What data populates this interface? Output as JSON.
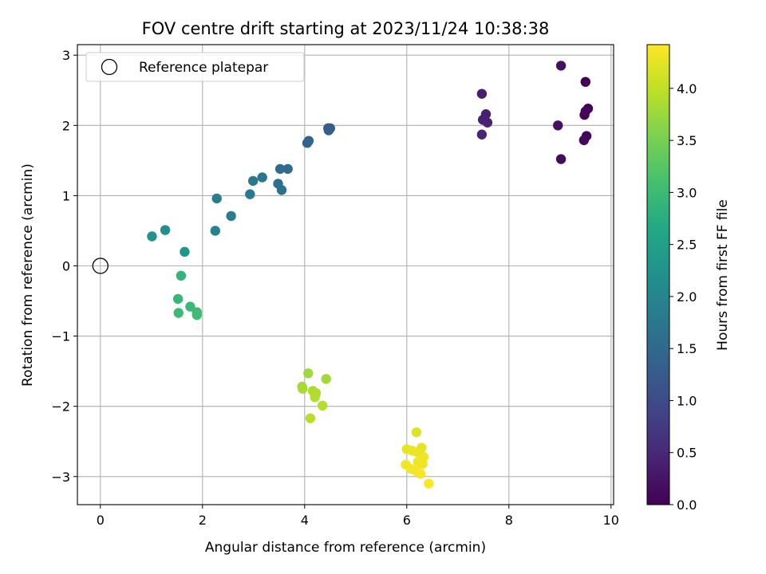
{
  "chart_data": {
    "type": "scatter",
    "title": "FOV centre drift starting at 2023/11/24 10:38:38",
    "xlabel": "Angular distance from reference (arcmin)",
    "ylabel": "Rotation from reference (arcmin)",
    "xlim": [
      -0.45,
      10.05
    ],
    "ylim": [
      -3.4,
      3.15
    ],
    "xticks": [
      0,
      2,
      4,
      6,
      8,
      10
    ],
    "xtick_labels": [
      "0",
      "2",
      "4",
      "6",
      "8",
      "10"
    ],
    "yticks": [
      -3,
      -2,
      -1,
      0,
      1,
      2,
      3
    ],
    "ytick_labels": [
      "−3",
      "−2",
      "−1",
      "0",
      "1",
      "2",
      "3"
    ],
    "grid": true,
    "colormap": "viridis",
    "colorbar": {
      "label": "Hours from first FF file",
      "range": [
        0,
        4.42
      ],
      "ticks": [
        0,
        0.5,
        1,
        1.5,
        2,
        2.5,
        3,
        3.5,
        4
      ],
      "tick_labels": [
        "0.0",
        "0.5",
        "1.0",
        "1.5",
        "2.0",
        "2.5",
        "3.0",
        "3.5",
        "4.0"
      ]
    },
    "reference": {
      "name": "Reference platepar",
      "x": 0,
      "y": 0,
      "marker": "open-circle",
      "legend_location": "upper left"
    },
    "points": [
      {
        "x": 9.5,
        "y": 2.62,
        "hours": 0.0
      },
      {
        "x": 9.55,
        "y": 2.24,
        "hours": 0.02
      },
      {
        "x": 9.5,
        "y": 2.2,
        "hours": 0.04
      },
      {
        "x": 9.48,
        "y": 2.15,
        "hours": 0.06
      },
      {
        "x": 9.52,
        "y": 1.85,
        "hours": 0.08
      },
      {
        "x": 9.47,
        "y": 1.79,
        "hours": 0.1
      },
      {
        "x": 9.02,
        "y": 1.52,
        "hours": 0.14
      },
      {
        "x": 8.96,
        "y": 2.0,
        "hours": 0.17
      },
      {
        "x": 9.02,
        "y": 2.85,
        "hours": 0.19
      },
      {
        "x": 7.47,
        "y": 2.45,
        "hours": 0.36
      },
      {
        "x": 7.55,
        "y": 2.16,
        "hours": 0.39
      },
      {
        "x": 7.49,
        "y": 2.08,
        "hours": 0.41
      },
      {
        "x": 7.58,
        "y": 2.04,
        "hours": 0.43
      },
      {
        "x": 7.47,
        "y": 1.87,
        "hours": 0.45
      },
      {
        "x": 4.5,
        "y": 1.96,
        "hours": 1.25
      },
      {
        "x": 4.46,
        "y": 1.96,
        "hours": 1.28
      },
      {
        "x": 4.47,
        "y": 1.93,
        "hours": 1.31
      },
      {
        "x": 4.08,
        "y": 1.78,
        "hours": 1.4
      },
      {
        "x": 4.05,
        "y": 1.75,
        "hours": 1.43
      },
      {
        "x": 3.67,
        "y": 1.38,
        "hours": 1.55
      },
      {
        "x": 3.52,
        "y": 1.38,
        "hours": 1.58
      },
      {
        "x": 3.48,
        "y": 1.17,
        "hours": 1.62
      },
      {
        "x": 3.55,
        "y": 1.08,
        "hours": 1.65
      },
      {
        "x": 3.17,
        "y": 1.26,
        "hours": 1.72
      },
      {
        "x": 2.99,
        "y": 1.21,
        "hours": 1.75
      },
      {
        "x": 2.93,
        "y": 1.02,
        "hours": 1.78
      },
      {
        "x": 2.56,
        "y": 0.71,
        "hours": 1.85
      },
      {
        "x": 2.28,
        "y": 0.96,
        "hours": 1.9
      },
      {
        "x": 2.25,
        "y": 0.5,
        "hours": 1.94
      },
      {
        "x": 1.27,
        "y": 0.51,
        "hours": 2.18
      },
      {
        "x": 1.01,
        "y": 0.42,
        "hours": 2.22
      },
      {
        "x": 1.65,
        "y": 0.2,
        "hours": 2.3
      },
      {
        "x": 1.58,
        "y": -0.14,
        "hours": 2.88
      },
      {
        "x": 1.52,
        "y": -0.47,
        "hours": 2.92
      },
      {
        "x": 1.76,
        "y": -0.58,
        "hours": 2.95
      },
      {
        "x": 1.89,
        "y": -0.66,
        "hours": 2.98
      },
      {
        "x": 1.53,
        "y": -0.67,
        "hours": 3.0
      },
      {
        "x": 1.89,
        "y": -0.7,
        "hours": 3.03
      },
      {
        "x": 4.07,
        "y": -1.53,
        "hours": 3.78
      },
      {
        "x": 4.42,
        "y": -1.61,
        "hours": 3.8
      },
      {
        "x": 3.95,
        "y": -1.72,
        "hours": 3.82
      },
      {
        "x": 3.96,
        "y": -1.75,
        "hours": 3.84
      },
      {
        "x": 4.16,
        "y": -1.78,
        "hours": 3.86
      },
      {
        "x": 4.22,
        "y": -1.81,
        "hours": 3.88
      },
      {
        "x": 4.2,
        "y": -1.87,
        "hours": 3.9
      },
      {
        "x": 4.35,
        "y": -1.99,
        "hours": 3.92
      },
      {
        "x": 4.11,
        "y": -2.17,
        "hours": 3.94
      },
      {
        "x": 6.19,
        "y": -2.37,
        "hours": 4.2
      },
      {
        "x": 6.29,
        "y": -2.59,
        "hours": 4.25
      },
      {
        "x": 6.0,
        "y": -2.61,
        "hours": 4.27
      },
      {
        "x": 6.1,
        "y": -2.63,
        "hours": 4.29
      },
      {
        "x": 6.2,
        "y": -2.65,
        "hours": 4.3
      },
      {
        "x": 6.33,
        "y": -2.72,
        "hours": 4.31
      },
      {
        "x": 6.22,
        "y": -2.79,
        "hours": 4.32
      },
      {
        "x": 6.31,
        "y": -2.82,
        "hours": 4.33
      },
      {
        "x": 5.98,
        "y": -2.83,
        "hours": 4.34
      },
      {
        "x": 6.08,
        "y": -2.89,
        "hours": 4.35
      },
      {
        "x": 6.18,
        "y": -2.92,
        "hours": 4.36
      },
      {
        "x": 6.27,
        "y": -2.96,
        "hours": 4.38
      },
      {
        "x": 6.43,
        "y": -3.1,
        "hours": 4.4
      }
    ]
  }
}
